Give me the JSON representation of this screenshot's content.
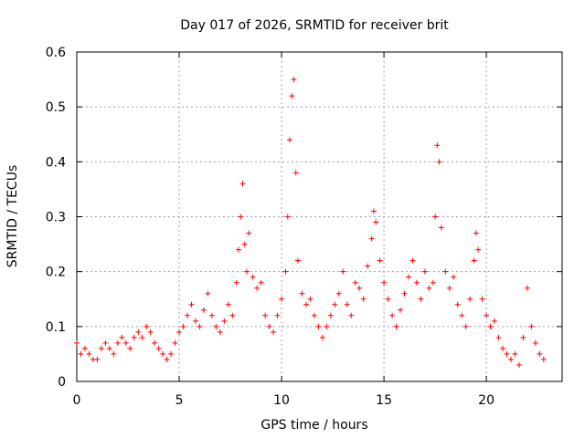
{
  "chart_data": {
    "type": "scatter",
    "title": "Day 017 of 2026, SRMTID for receiver brit",
    "xlabel": "GPS time / hours",
    "ylabel": "SRMTID / TECUs",
    "xlim": [
      0,
      23.7
    ],
    "ylim": [
      0,
      0.6
    ],
    "x_ticks": [
      0,
      5,
      10,
      15,
      20
    ],
    "x_tick_labels": [
      "0",
      "5",
      "10",
      "15",
      "20"
    ],
    "y_ticks": [
      0,
      0.1,
      0.2,
      0.3,
      0.4,
      0.5,
      0.6
    ],
    "y_tick_labels": [
      "0",
      "0.1",
      "0.2",
      "0.3",
      "0.4",
      "0.5",
      "0.6"
    ],
    "grid": true,
    "marker": "plus",
    "color": "#ff0000",
    "series": [
      {
        "name": "SRMTID",
        "x": [
          0.0,
          0.2,
          0.4,
          0.6,
          0.8,
          1.0,
          1.2,
          1.4,
          1.6,
          1.8,
          2.0,
          2.2,
          2.4,
          2.6,
          2.8,
          3.0,
          3.2,
          3.4,
          3.6,
          3.8,
          4.0,
          4.2,
          4.4,
          4.6,
          4.8,
          5.0,
          5.2,
          5.4,
          5.6,
          5.8,
          6.0,
          6.2,
          6.4,
          6.6,
          6.8,
          7.0,
          7.2,
          7.4,
          7.6,
          7.8,
          7.9,
          8.0,
          8.1,
          8.2,
          8.3,
          8.4,
          8.6,
          8.8,
          9.0,
          9.2,
          9.4,
          9.6,
          9.8,
          10.0,
          10.2,
          10.3,
          10.4,
          10.5,
          10.6,
          10.7,
          10.8,
          11.0,
          11.2,
          11.4,
          11.6,
          11.8,
          12.0,
          12.2,
          12.4,
          12.6,
          12.8,
          13.0,
          13.2,
          13.4,
          13.6,
          13.8,
          14.0,
          14.2,
          14.4,
          14.5,
          14.6,
          14.8,
          15.0,
          15.2,
          15.4,
          15.6,
          15.8,
          16.0,
          16.2,
          16.4,
          16.6,
          16.8,
          17.0,
          17.2,
          17.4,
          17.5,
          17.6,
          17.7,
          17.8,
          18.0,
          18.2,
          18.4,
          18.6,
          18.8,
          19.0,
          19.2,
          19.4,
          19.5,
          19.6,
          19.8,
          20.0,
          20.2,
          20.4,
          20.6,
          20.8,
          21.0,
          21.2,
          21.4,
          21.6,
          21.8,
          22.0,
          22.2,
          22.4,
          22.6,
          22.8
        ],
        "y": [
          0.07,
          0.05,
          0.06,
          0.05,
          0.04,
          0.04,
          0.06,
          0.07,
          0.06,
          0.05,
          0.07,
          0.08,
          0.07,
          0.06,
          0.08,
          0.09,
          0.08,
          0.1,
          0.09,
          0.07,
          0.06,
          0.05,
          0.04,
          0.05,
          0.07,
          0.09,
          0.1,
          0.12,
          0.14,
          0.11,
          0.1,
          0.13,
          0.16,
          0.12,
          0.1,
          0.09,
          0.11,
          0.14,
          0.12,
          0.18,
          0.24,
          0.3,
          0.36,
          0.25,
          0.2,
          0.27,
          0.19,
          0.17,
          0.18,
          0.12,
          0.1,
          0.09,
          0.12,
          0.15,
          0.2,
          0.3,
          0.44,
          0.52,
          0.55,
          0.38,
          0.22,
          0.16,
          0.14,
          0.15,
          0.12,
          0.1,
          0.08,
          0.1,
          0.12,
          0.14,
          0.16,
          0.2,
          0.14,
          0.12,
          0.18,
          0.17,
          0.15,
          0.21,
          0.26,
          0.31,
          0.29,
          0.22,
          0.18,
          0.15,
          0.12,
          0.1,
          0.13,
          0.16,
          0.19,
          0.22,
          0.18,
          0.15,
          0.2,
          0.17,
          0.18,
          0.3,
          0.43,
          0.4,
          0.28,
          0.2,
          0.17,
          0.19,
          0.14,
          0.12,
          0.1,
          0.15,
          0.22,
          0.27,
          0.24,
          0.15,
          0.12,
          0.1,
          0.11,
          0.08,
          0.06,
          0.05,
          0.04,
          0.05,
          0.03,
          0.08,
          0.17,
          0.1,
          0.07,
          0.05,
          0.04
        ]
      }
    ]
  }
}
